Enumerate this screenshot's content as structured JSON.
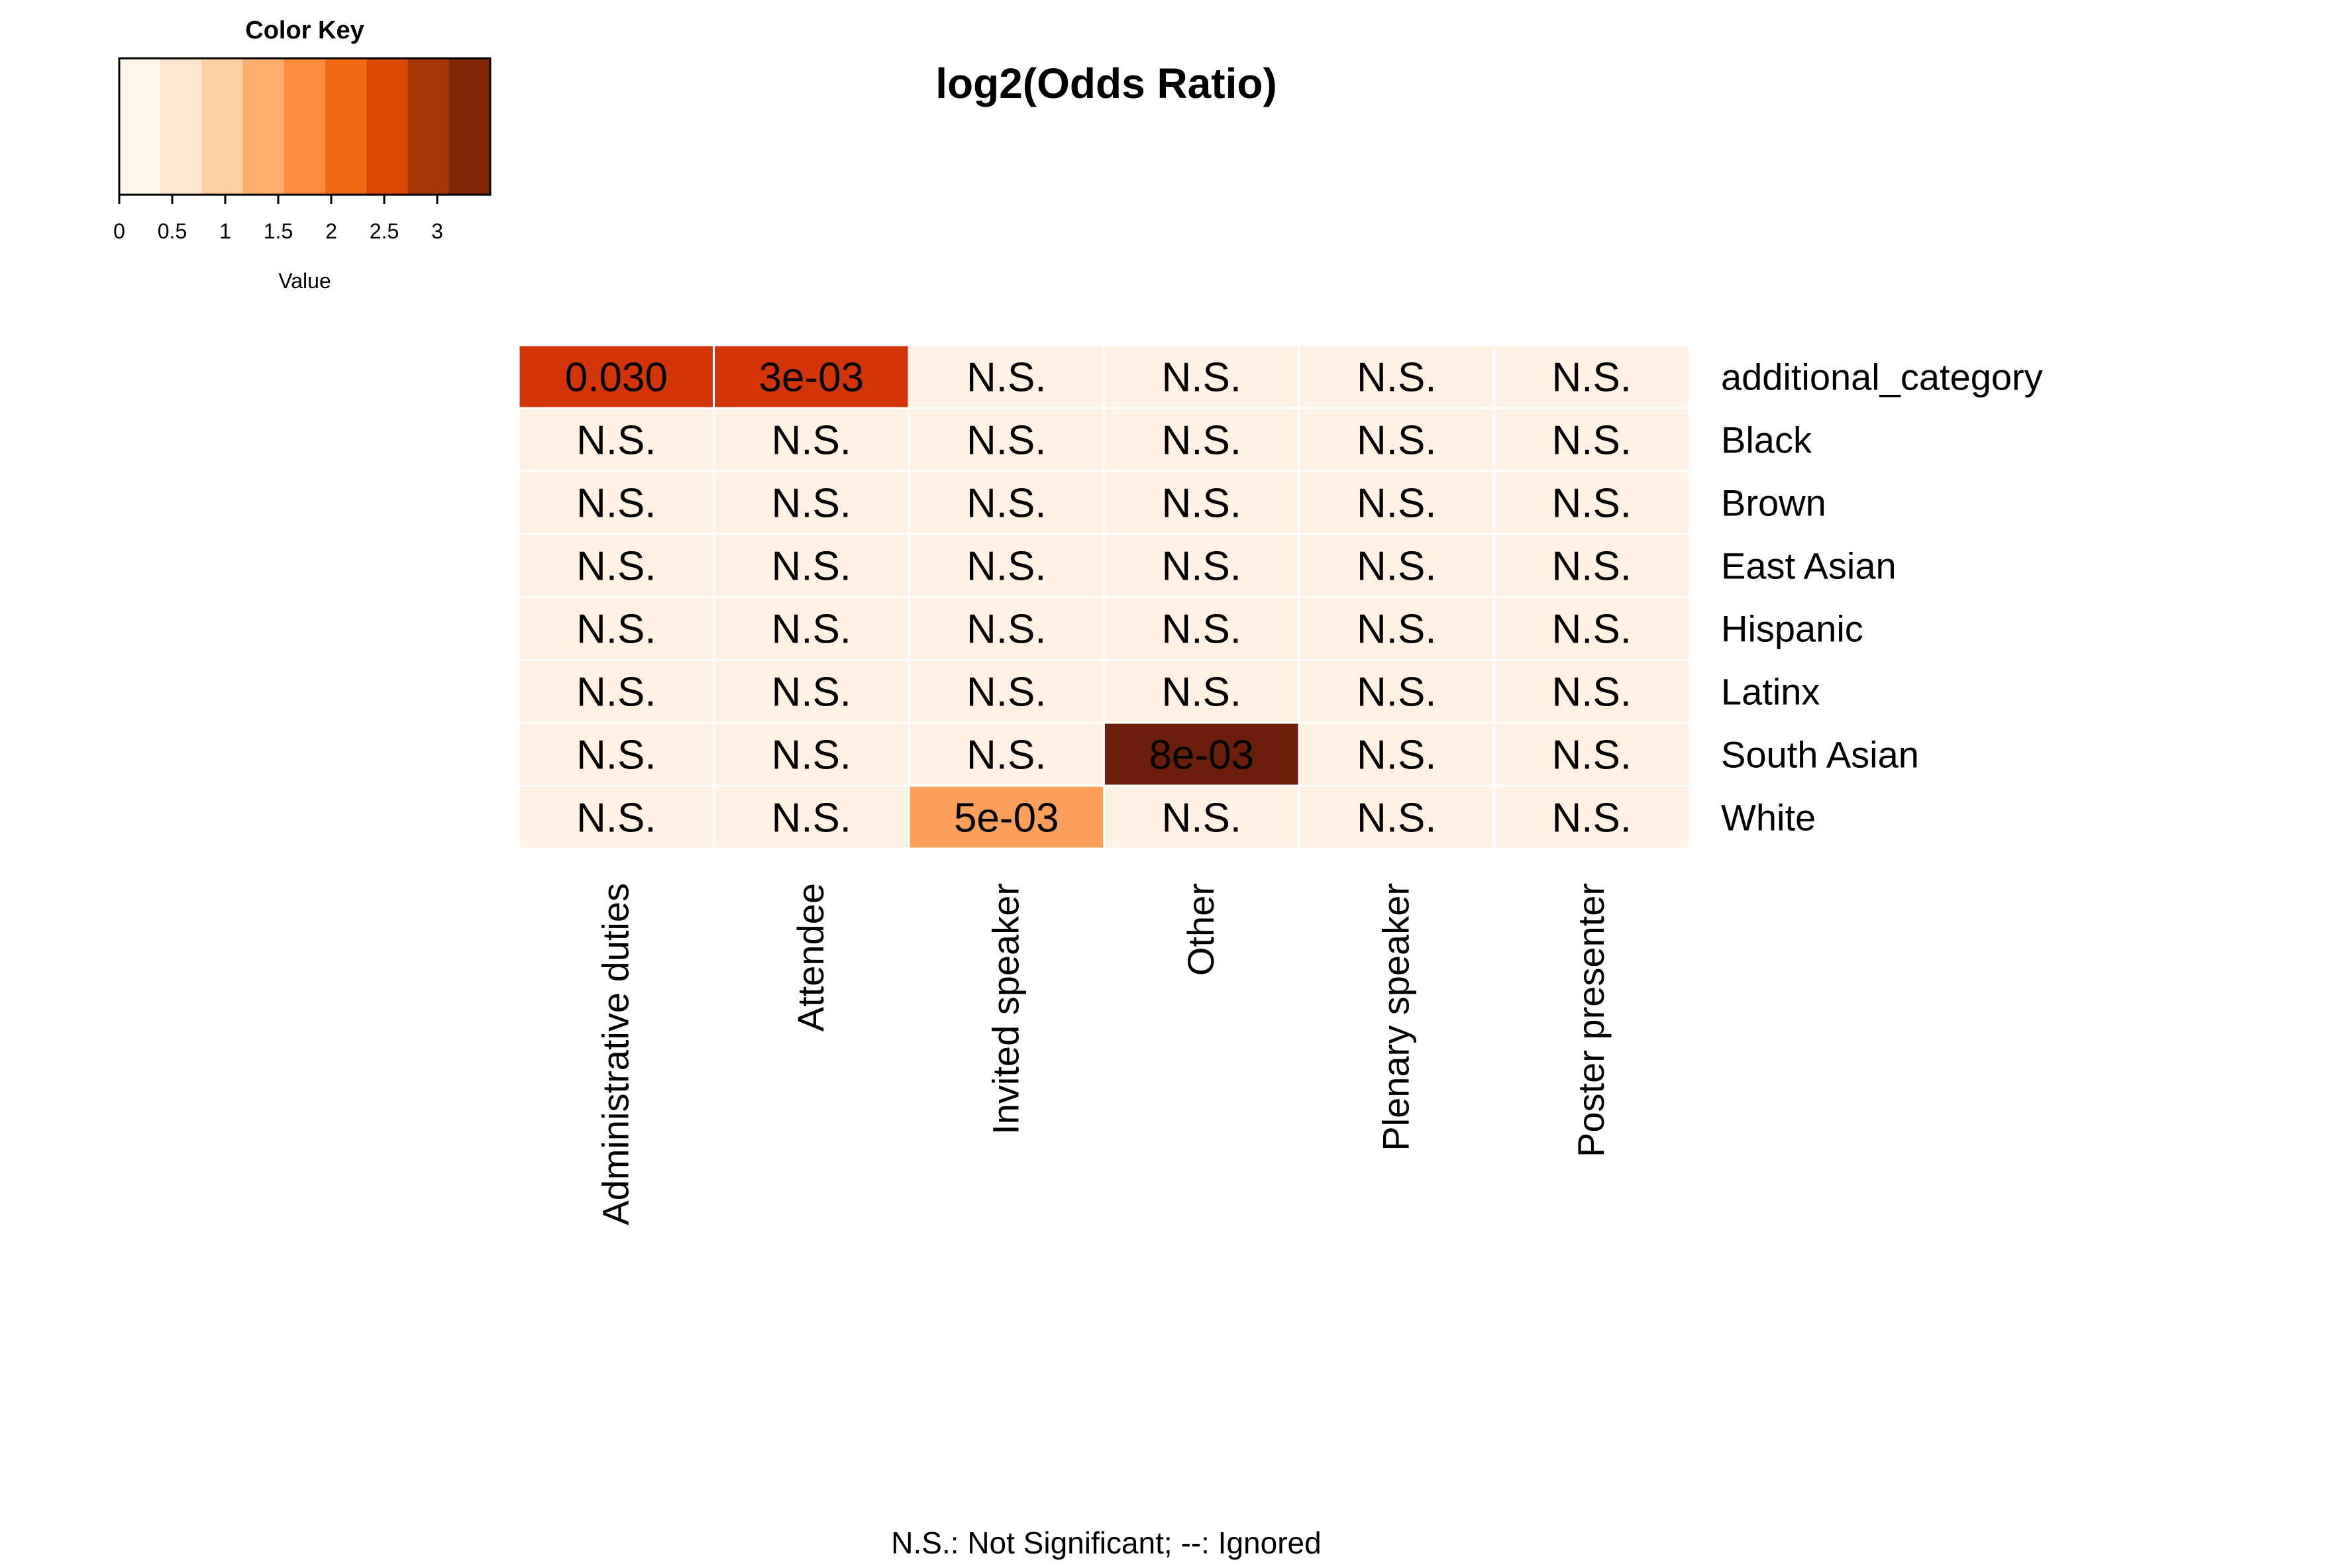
{
  "chart_data": {
    "type": "heatmap",
    "title": "log2(Odds Ratio)",
    "footnote": "N.S.: Not Significant; --: Ignored",
    "columns": [
      "Administrative duties",
      "Attendee",
      "Invited speaker",
      "Other",
      "Plenary speaker",
      "Poster presenter"
    ],
    "rows": [
      "additional_category",
      "Black",
      "Brown",
      "East Asian",
      "Hispanic",
      "Latinx",
      "South Asian",
      "White"
    ],
    "cells": [
      [
        {
          "value": 2.5,
          "label": "0.030"
        },
        {
          "value": 2.5,
          "label": "3e-03"
        },
        {
          "value": 0,
          "label": "N.S."
        },
        {
          "value": 0,
          "label": "N.S."
        },
        {
          "value": 0,
          "label": "N.S."
        },
        {
          "value": 0,
          "label": "N.S."
        }
      ],
      [
        {
          "value": 0,
          "label": "N.S."
        },
        {
          "value": 0,
          "label": "N.S."
        },
        {
          "value": 0,
          "label": "N.S."
        },
        {
          "value": 0,
          "label": "N.S."
        },
        {
          "value": 0,
          "label": "N.S."
        },
        {
          "value": 0,
          "label": "N.S."
        }
      ],
      [
        {
          "value": 0,
          "label": "N.S."
        },
        {
          "value": 0,
          "label": "N.S."
        },
        {
          "value": 0,
          "label": "N.S."
        },
        {
          "value": 0,
          "label": "N.S."
        },
        {
          "value": 0,
          "label": "N.S."
        },
        {
          "value": 0,
          "label": "N.S."
        }
      ],
      [
        {
          "value": 0,
          "label": "N.S."
        },
        {
          "value": 0,
          "label": "N.S."
        },
        {
          "value": 0,
          "label": "N.S."
        },
        {
          "value": 0,
          "label": "N.S."
        },
        {
          "value": 0,
          "label": "N.S."
        },
        {
          "value": 0,
          "label": "N.S."
        }
      ],
      [
        {
          "value": 0,
          "label": "N.S."
        },
        {
          "value": 0,
          "label": "N.S."
        },
        {
          "value": 0,
          "label": "N.S."
        },
        {
          "value": 0,
          "label": "N.S."
        },
        {
          "value": 0,
          "label": "N.S."
        },
        {
          "value": 0,
          "label": "N.S."
        }
      ],
      [
        {
          "value": 0,
          "label": "N.S."
        },
        {
          "value": 0,
          "label": "N.S."
        },
        {
          "value": 0,
          "label": "N.S."
        },
        {
          "value": 0,
          "label": "N.S."
        },
        {
          "value": 0,
          "label": "N.S."
        },
        {
          "value": 0,
          "label": "N.S."
        }
      ],
      [
        {
          "value": 0,
          "label": "N.S."
        },
        {
          "value": 0,
          "label": "N.S."
        },
        {
          "value": 0,
          "label": "N.S."
        },
        {
          "value": 3.5,
          "label": "8e-03"
        },
        {
          "value": 0,
          "label": "N.S."
        },
        {
          "value": 0,
          "label": "N.S."
        }
      ],
      [
        {
          "value": 0,
          "label": "N.S."
        },
        {
          "value": 0,
          "label": "N.S."
        },
        {
          "value": 1.25,
          "label": "5e-03"
        },
        {
          "value": 0,
          "label": "N.S."
        },
        {
          "value": 0,
          "label": "N.S."
        },
        {
          "value": 0,
          "label": "N.S."
        }
      ]
    ],
    "color_key": {
      "title": "Color Key",
      "xlabel": "Value",
      "range": [
        0,
        3.5
      ],
      "ticks": [
        "0",
        "0.5",
        "1",
        "1.5",
        "2",
        "2.5",
        "3"
      ],
      "colors": [
        "#fff5eb",
        "#fee6ce",
        "#fdd0a2",
        "#fdae6b",
        "#fd8d3c",
        "#f16913",
        "#d94801",
        "#a63603",
        "#7f2704"
      ]
    },
    "cell_colors": {
      "2.5": "#d43508",
      "3.5": "#6b1e09",
      "1.25": "#fb9f5a",
      "0": "#fff1e4"
    },
    "grid": false
  }
}
